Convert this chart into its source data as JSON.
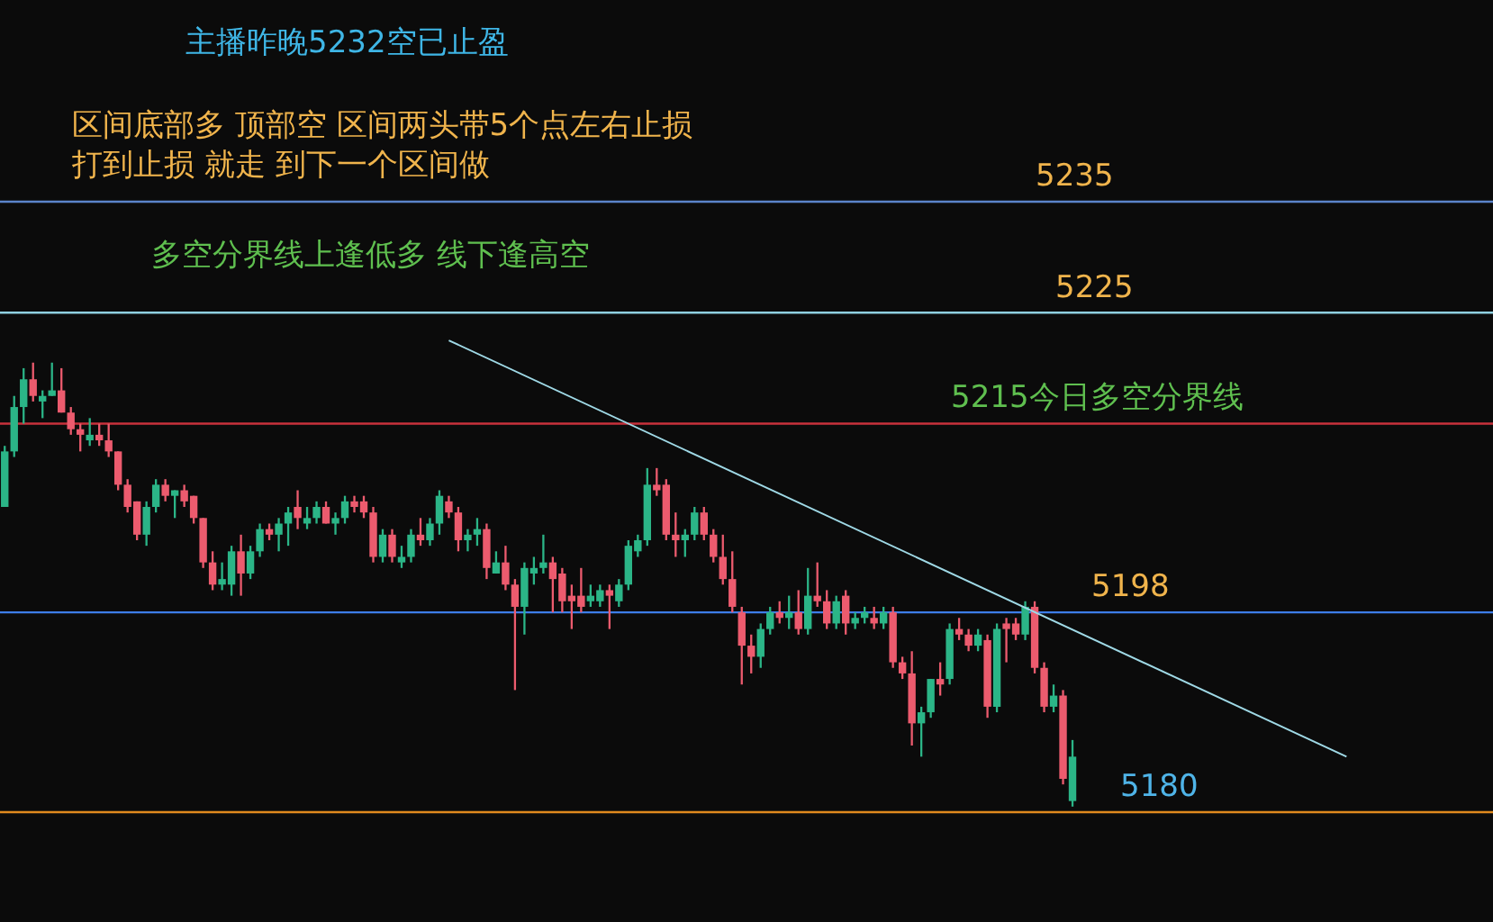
{
  "chart_data": {
    "type": "candlestick",
    "categories": [
      null,
      null,
      null,
      null,
      null,
      null,
      null,
      null,
      null,
      null,
      null,
      null,
      null,
      null,
      null,
      null,
      null,
      null,
      null,
      null,
      null,
      null,
      null,
      null,
      null,
      null,
      null,
      null,
      null,
      null,
      null,
      null,
      null,
      null,
      null,
      null,
      null,
      null,
      null,
      null,
      null,
      null,
      null,
      null,
      null,
      null,
      null,
      null,
      null,
      null,
      null,
      null,
      null,
      null,
      null,
      null,
      null,
      null,
      null,
      null,
      null,
      null,
      null,
      null,
      null,
      null,
      null,
      null,
      null,
      null,
      null,
      null,
      null,
      null,
      null,
      null,
      null,
      null,
      null,
      null,
      null,
      null,
      null,
      null,
      null,
      null,
      null,
      null,
      null,
      null,
      null,
      null,
      null,
      null,
      null,
      null,
      null,
      null,
      null,
      null,
      null,
      null,
      null,
      null,
      null,
      null,
      null,
      null,
      null,
      null,
      null,
      null,
      null,
      null,
      null,
      null,
      null,
      null,
      null,
      null,
      null,
      null,
      null,
      null,
      null,
      null,
      null,
      null,
      null,
      null,
      null,
      null,
      null,
      null,
      null,
      null,
      null,
      null,
      null,
      null,
      null,
      null,
      null,
      null,
      null,
      null,
      null,
      null,
      null,
      null,
      null,
      null,
      null,
      null,
      null,
      null,
      null,
      null
    ],
    "ohlc": [
      [
        5207.5,
        5213,
        5207.5,
        5212.5
      ],
      [
        5212.5,
        5217.5,
        5212,
        5216.5
      ],
      [
        5216.5,
        5220,
        5215,
        5219
      ],
      [
        5219,
        5220.5,
        5217,
        5217.5
      ],
      [
        5217,
        5218,
        5215.5,
        5217.5
      ],
      [
        5217.5,
        5220.5,
        5217.5,
        5218
      ],
      [
        5218,
        5220,
        5216,
        5216
      ],
      [
        5216,
        5216.5,
        5214,
        5214.5
      ],
      [
        5214.5,
        5215,
        5212.5,
        5214
      ],
      [
        5213.5,
        5215.5,
        5213,
        5214
      ],
      [
        5214,
        5215,
        5213,
        5213.5
      ],
      [
        5213.5,
        5215,
        5212,
        5212.5
      ],
      [
        5212.5,
        5212.5,
        5209,
        5209.5
      ],
      [
        5209.5,
        5210,
        5207,
        5207.5
      ],
      [
        5208,
        5208,
        5204.5,
        5205
      ],
      [
        5205,
        5208,
        5204,
        5207.5
      ],
      [
        5207.5,
        5210,
        5207,
        5209.5
      ],
      [
        5209.5,
        5210,
        5208,
        5208.5
      ],
      [
        5208.5,
        5209,
        5206.5,
        5209
      ],
      [
        5209,
        5209.5,
        5207.5,
        5208
      ],
      [
        5208.5,
        5208.5,
        5206,
        5206.5
      ],
      [
        5206.5,
        5206.5,
        5202,
        5202.5
      ],
      [
        5202.5,
        5203.5,
        5200,
        5200.5
      ],
      [
        5200.5,
        5202.5,
        5200,
        5201
      ],
      [
        5200.5,
        5204,
        5199.5,
        5203.5
      ],
      [
        5203.5,
        5205,
        5199.5,
        5201.5
      ],
      [
        5201.5,
        5204,
        5201,
        5203.5
      ],
      [
        5203.5,
        5206,
        5203,
        5205.5
      ],
      [
        5205.5,
        5206,
        5204.5,
        5205
      ],
      [
        5205,
        5206.5,
        5203.5,
        5206
      ],
      [
        5206,
        5207.5,
        5204,
        5207
      ],
      [
        5207.5,
        5209,
        5205.5,
        5206.5
      ],
      [
        5206,
        5207.5,
        5205.5,
        5206.5
      ],
      [
        5206.5,
        5208,
        5206,
        5207.5
      ],
      [
        5207.5,
        5208,
        5206,
        5206
      ],
      [
        5206,
        5207,
        5205,
        5206.5
      ],
      [
        5206.5,
        5208.5,
        5206,
        5208
      ],
      [
        5208,
        5208.5,
        5207,
        5207.5
      ],
      [
        5208,
        5208.5,
        5206.5,
        5207
      ],
      [
        5207,
        5207.5,
        5202.5,
        5203
      ],
      [
        5203,
        5205.5,
        5202.5,
        5205
      ],
      [
        5205,
        5205.5,
        5202.5,
        5203
      ],
      [
        5202.5,
        5204,
        5202,
        5203
      ],
      [
        5203,
        5205.5,
        5202.5,
        5205
      ],
      [
        5205,
        5206.5,
        5204,
        5204.5
      ],
      [
        5204.5,
        5206.5,
        5204,
        5206
      ],
      [
        5206,
        5209,
        5205,
        5208.5
      ],
      [
        5208,
        5208.5,
        5206.5,
        5207
      ],
      [
        5207,
        5207.5,
        5203.5,
        5204.5
      ],
      [
        5204.5,
        5205.5,
        5203.5,
        5205
      ],
      [
        5205,
        5206.5,
        5204,
        5205.5
      ],
      [
        5205.5,
        5206,
        5201,
        5202
      ],
      [
        5201.5,
        5203.5,
        5201.5,
        5202.5
      ],
      [
        5202.5,
        5204,
        5200,
        5200.5
      ],
      [
        5200.5,
        5201,
        5191,
        5198.5
      ],
      [
        5198.5,
        5202.5,
        5196,
        5202
      ],
      [
        5201.5,
        5203,
        5200.5,
        5202
      ],
      [
        5202,
        5205,
        5201.5,
        5202.5
      ],
      [
        5202.5,
        5203,
        5198,
        5201
      ],
      [
        5201.5,
        5202,
        5198,
        5199
      ],
      [
        5199.5,
        5200.5,
        5196.5,
        5199
      ],
      [
        5199.5,
        5202,
        5198,
        5198.5
      ],
      [
        5199,
        5200.5,
        5198.5,
        5199.5
      ],
      [
        5199,
        5200.5,
        5198.5,
        5200
      ],
      [
        5200,
        5200.5,
        5196.5,
        5199.5
      ],
      [
        5199,
        5201,
        5198.5,
        5200.5
      ],
      [
        5200.5,
        5204.5,
        5200,
        5204
      ],
      [
        5203.5,
        5205,
        5203,
        5204.5
      ],
      [
        5204.5,
        5211,
        5204,
        5209.5
      ],
      [
        5209.5,
        5211,
        5208.5,
        5209
      ],
      [
        5209.5,
        5210,
        5204.5,
        5205
      ],
      [
        5205,
        5207,
        5203,
        5204.5
      ],
      [
        5204.5,
        5205.5,
        5203,
        5205
      ],
      [
        5205,
        5207.5,
        5204.5,
        5207
      ],
      [
        5207,
        5207.5,
        5204.5,
        5205
      ],
      [
        5205,
        5205.5,
        5202.5,
        5203
      ],
      [
        5203,
        5205,
        5200.5,
        5201
      ],
      [
        5201,
        5203.5,
        5198,
        5198.5
      ],
      [
        5198,
        5198.5,
        5191.5,
        5195
      ],
      [
        5195,
        5196,
        5192.5,
        5194
      ],
      [
        5194,
        5197,
        5193,
        5196.5
      ],
      [
        5196.5,
        5198.5,
        5196,
        5198
      ],
      [
        5198,
        5199,
        5197,
        5197.5
      ],
      [
        5197.5,
        5199.5,
        5196.5,
        5198
      ],
      [
        5198,
        5200,
        5196,
        5196.5
      ],
      [
        5196.5,
        5202,
        5196,
        5199.5
      ],
      [
        5199.5,
        5202.5,
        5198.5,
        5199
      ],
      [
        5199,
        5200,
        5196.5,
        5197
      ],
      [
        5197,
        5199.5,
        5196.5,
        5199
      ],
      [
        5199.5,
        5200,
        5196,
        5197
      ],
      [
        5197,
        5198,
        5196.5,
        5197.5
      ],
      [
        5197.5,
        5198.5,
        5197,
        5198
      ],
      [
        5197.5,
        5198.5,
        5196.5,
        5197
      ],
      [
        5197,
        5198.5,
        5196.5,
        5198
      ],
      [
        5198,
        5198.5,
        5193,
        5193.5
      ],
      [
        5193.5,
        5194,
        5192,
        5192.5
      ],
      [
        5192.5,
        5194.5,
        5186,
        5188
      ],
      [
        5188,
        5189.5,
        5185,
        5189
      ],
      [
        5189,
        5192,
        5188.5,
        5192
      ],
      [
        5192,
        5193.5,
        5190.5,
        5191.5
      ],
      [
        5192,
        5197,
        5191.5,
        5196.5
      ],
      [
        5196.5,
        5197.5,
        5195.5,
        5196
      ],
      [
        5196,
        5196.5,
        5194.5,
        5195
      ],
      [
        5195,
        5196.5,
        5194.5,
        5196
      ],
      [
        5195.5,
        5196,
        5188.5,
        5189.5
      ],
      [
        5189.5,
        5197,
        5189,
        5196.5
      ],
      [
        5197,
        5197.5,
        5193.5,
        5196.5
      ],
      [
        5197,
        5197.5,
        5195.5,
        5196
      ],
      [
        5196,
        5199,
        5195.5,
        5198.5
      ],
      [
        5198.5,
        5199,
        5192.5,
        5193
      ],
      [
        5193,
        5193.5,
        5189,
        5189.5
      ],
      [
        5189.5,
        5191.5,
        5189,
        5190.5
      ],
      [
        5190.5,
        5191,
        5182.5,
        5183
      ],
      [
        5181,
        5186.5,
        5180.5,
        5185
      ],
      null,
      null,
      null,
      null,
      null,
      null,
      null,
      null,
      null,
      null,
      null,
      null,
      null,
      null,
      null,
      null,
      null,
      null,
      null,
      null,
      null,
      null,
      null,
      null,
      null,
      null,
      null,
      null,
      null,
      null,
      null,
      null,
      null,
      null,
      null,
      null,
      null,
      null,
      null,
      null,
      null,
      null,
      null,
      null
    ],
    "series": [
      {
        "type": "line",
        "color": "#9fd9e6",
        "values": [
          null,
          null,
          null,
          null,
          null,
          null,
          null,
          null,
          null,
          null,
          null,
          null,
          null,
          null,
          null,
          null,
          null,
          null,
          null,
          null,
          null,
          null,
          null,
          null,
          null,
          null,
          null,
          null,
          null,
          null,
          null,
          null,
          null,
          null,
          null,
          null,
          null,
          null,
          null,
          null,
          null,
          null,
          null,
          null,
          null,
          null,
          null,
          5222.5,
          null,
          null,
          null,
          null,
          null,
          null,
          null,
          null,
          null,
          null,
          null,
          null,
          null,
          null,
          null,
          null,
          null,
          null,
          null,
          null,
          null,
          null,
          null,
          null,
          null,
          null,
          null,
          null,
          null,
          null,
          null,
          null,
          null,
          null,
          null,
          null,
          null,
          null,
          null,
          null,
          null,
          null,
          null,
          null,
          null,
          null,
          null,
          null,
          null,
          null,
          null,
          null,
          null,
          null,
          null,
          null,
          null,
          null,
          null,
          null,
          null,
          null,
          null,
          null,
          null,
          null,
          null,
          null,
          null,
          null,
          null,
          null,
          null,
          null,
          null,
          null,
          null,
          null,
          null,
          null,
          null,
          null,
          null,
          null,
          null,
          null,
          null,
          null,
          null,
          null,
          null,
          null,
          null,
          null,
          5185,
          null,
          null,
          null,
          null,
          null,
          null,
          null,
          null,
          null,
          null,
          null,
          null,
          null,
          null,
          null
        ]
      }
    ],
    "ylim": [
      5180,
      5235
    ],
    "tick_labels": false,
    "ref_lines": [
      {
        "axis": "y",
        "value": 5235,
        "label": "5235",
        "color": "#5b84c9"
      },
      {
        "axis": "y",
        "value": 5225,
        "label": "5225",
        "color": "#8fd0e0"
      },
      {
        "axis": "y",
        "value": 5215,
        "label": "5215今日多空分界线",
        "color": "#c8323c"
      },
      {
        "axis": "y",
        "value": 5198,
        "label": "5198",
        "color": "#3d7de8"
      },
      {
        "axis": "y",
        "value": 5180,
        "label": "5180",
        "color": "#e08a1e"
      }
    ],
    "annotations": [
      "主播昨晚5232空已止盈",
      "区间底部多 顶部空  区间两头带5个点左右止损",
      "打到止损  就走   到下一个区间做",
      "多空分界线上逢低多  线下逢高空"
    ]
  }
}
